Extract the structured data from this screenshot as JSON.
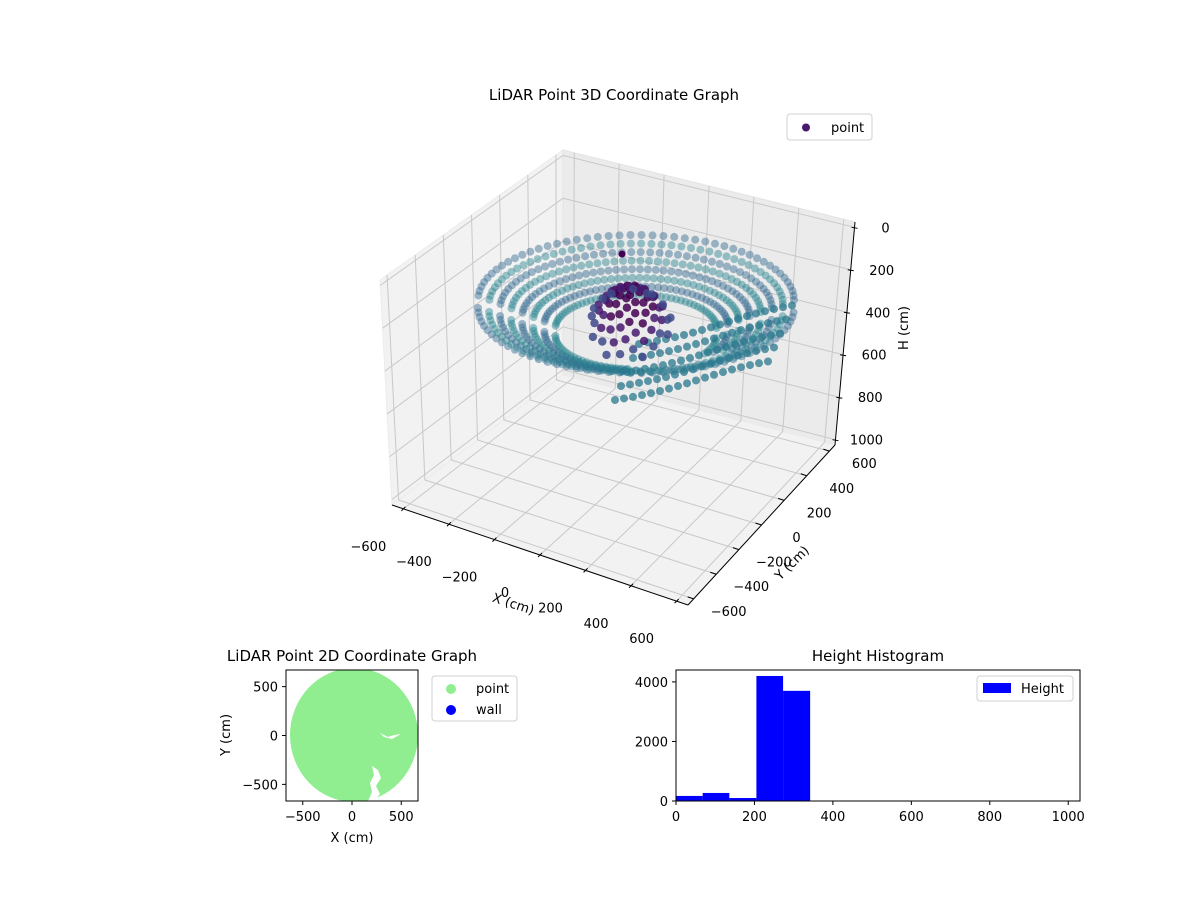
{
  "chart_data": [
    {
      "type": "scatter",
      "projection": "3d",
      "title": "LiDAR Point 3D Coordinate Graph",
      "xlabel": "X (cm)",
      "ylabel": "Y (cm)",
      "zlabel": "H (cm)",
      "xticks": [
        "−600",
        "−400",
        "−200",
        "0",
        "200",
        "400",
        "600"
      ],
      "yticks": [
        "−600",
        "−400",
        "−200",
        "0",
        "200",
        "400",
        "600"
      ],
      "zticks": [
        "0",
        "200",
        "400",
        "600",
        "800",
        "1000"
      ],
      "xlim": [
        -650,
        650
      ],
      "ylim": [
        -650,
        650
      ],
      "zlim": [
        1000,
        0
      ],
      "zaxis_inverted": true,
      "colormap": "viridis",
      "legend": [
        {
          "label": "point",
          "color": "#471a6e"
        }
      ],
      "legend_position": "upper right",
      "description": "Circular ring/disk-shaped point cloud of radius ~650 cm at heights ~200-340 cm, with a dense purple cluster near the center and scattered lower points",
      "series": [
        {
          "name": "point",
          "shape": "ring",
          "radius_cm": 650,
          "height_range_cm": [
            200,
            340
          ]
        }
      ]
    },
    {
      "type": "scatter",
      "title": "LiDAR Point 2D Coordinate Graph",
      "xlabel": "X (cm)",
      "ylabel": "Y (cm)",
      "xticks": [
        "−500",
        "0",
        "500"
      ],
      "yticks": [
        "−500",
        "0",
        "500"
      ],
      "xlim": [
        -670,
        670
      ],
      "ylim": [
        -670,
        670
      ],
      "legend": [
        {
          "label": "point",
          "color": "#90ee90"
        },
        {
          "label": "wall",
          "color": "#0000ff"
        }
      ],
      "legend_position": "outside upper right",
      "series": [
        {
          "name": "point",
          "color": "#90ee90",
          "shape": "filled circle",
          "radius_cm": 650
        },
        {
          "name": "wall",
          "color": "#0000ff",
          "points": []
        }
      ]
    },
    {
      "type": "bar",
      "subtype": "histogram",
      "title": "Height Histogram",
      "xlabel": "",
      "ylabel": "",
      "xticks": [
        "0",
        "200",
        "400",
        "600",
        "800",
        "1000"
      ],
      "yticks": [
        "0",
        "2000",
        "4000"
      ],
      "xlim": [
        0,
        1030
      ],
      "ylim": [
        0,
        4400
      ],
      "bin_edges": [
        0,
        68,
        136,
        205,
        273,
        342
      ],
      "categories": [
        "0-68",
        "68-136",
        "136-205",
        "205-273",
        "273-342"
      ],
      "values": [
        170,
        270,
        100,
        4200,
        3700
      ],
      "color": "#0000ff",
      "legend": [
        {
          "label": "Height",
          "color": "#0000ff"
        }
      ],
      "legend_position": "upper right"
    }
  ],
  "plot3d": {
    "title": "LiDAR Point 3D Coordinate Graph",
    "xlabel": "X (cm)",
    "ylabel": "Y (cm)",
    "zlabel": "H (cm)",
    "legend_label": "point",
    "xticks": [
      "−600",
      "−400",
      "−200",
      "0",
      "200",
      "400",
      "600"
    ],
    "yticks": [
      "−600",
      "−400",
      "−200",
      "0",
      "200",
      "400",
      "600"
    ],
    "zticks": [
      "0",
      "200",
      "400",
      "600",
      "800",
      "1000"
    ]
  },
  "plot2d": {
    "title": "LiDAR Point 2D Coordinate Graph",
    "xlabel": "X (cm)",
    "ylabel": "Y (cm)",
    "xticks": [
      "−500",
      "0",
      "500"
    ],
    "yticks": [
      "−500",
      "0",
      "500"
    ],
    "legend": [
      "point",
      "wall"
    ],
    "colors": {
      "point": "#90ee90",
      "wall": "#0000ff"
    }
  },
  "hist": {
    "title": "Height Histogram",
    "legend_label": "Height",
    "xticks": [
      "0",
      "200",
      "400",
      "600",
      "800",
      "1000"
    ],
    "yticks": [
      "0",
      "2000",
      "4000"
    ],
    "color": "#0000ff"
  }
}
